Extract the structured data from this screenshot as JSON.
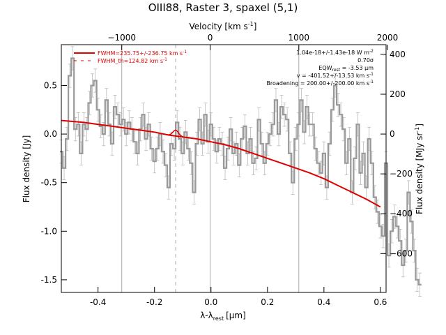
{
  "chart_data": {
    "type": "line",
    "title": "OIII88, Raster 3, spaxel (5,1)",
    "xlabel_bottom": "λ-λ",
    "xlabel_bottom_sub": "rest",
    "xlabel_bottom_unit": "[μm]",
    "xlabel_top": "Velocity [km s",
    "xlabel_top_sup": "-1",
    "xlabel_top_end": "]",
    "ylabel_left": "Flux density [Jy]",
    "ylabel_right": "Flux density [MJy sr",
    "ylabel_right_sup": "-1",
    "ylabel_right_end": "]",
    "xlim": [
      -0.53,
      0.62
    ],
    "ylim_left": [
      -1.63,
      0.92
    ],
    "top_axis_ticks": [
      {
        "value": -1000,
        "label": "−1000",
        "x_um": -0.316
      },
      {
        "value": 0,
        "label": "0",
        "x_um": -0.003
      },
      {
        "value": 1000,
        "label": "1000",
        "x_um": 0.311
      },
      {
        "value": 2000,
        "label": "2000",
        "x_um": 0.625
      }
    ],
    "left_ticks": [
      {
        "value": 0.5,
        "label": "0.5"
      },
      {
        "value": 0.0,
        "label": "0.0"
      },
      {
        "value": -0.5,
        "label": "-0.5"
      },
      {
        "value": -1.0,
        "label": "-1.0"
      },
      {
        "value": -1.5,
        "label": "-1.5"
      }
    ],
    "bottom_ticks": [
      {
        "value": -0.4,
        "label": "-0.4"
      },
      {
        "value": -0.2,
        "label": "-0.2"
      },
      {
        "value": 0.0,
        "label": "0.0"
      },
      {
        "value": 0.2,
        "label": "0.2"
      },
      {
        "value": 0.4,
        "label": "0.4"
      },
      {
        "value": 0.6,
        "label": "0.6"
      }
    ],
    "right_ticks": [
      {
        "value": 400,
        "label": "400",
        "y_jy": 0.82
      },
      {
        "value": 200,
        "label": "200",
        "y_jy": 0.41
      },
      {
        "value": 0,
        "label": "0",
        "y_jy": 0.0
      },
      {
        "value": -200,
        "label": "−200",
        "y_jy": -0.41
      },
      {
        "value": -400,
        "label": "−400",
        "y_jy": -0.82
      },
      {
        "value": -600,
        "label": "−600",
        "y_jy": -1.23
      }
    ],
    "vertical_lines": [
      -0.316,
      -0.003,
      0.311
    ],
    "dashed_line": -0.125,
    "legend": [
      {
        "label": "FWHM=235.75+/-236.75 km s",
        "sup": "-1",
        "style": "solid"
      },
      {
        "label": "FWHM_th=124.82 km s",
        "sup": "-1",
        "style": "dashed"
      }
    ],
    "annotations": [
      {
        "text": "1.04e-18+/-1.43e-18 W m",
        "sup": "-2"
      },
      {
        "text": "0.70σ",
        "sup": ""
      },
      {
        "text": "EQW",
        "sub": "rest",
        "after": " = -3.53 μm"
      },
      {
        "text": "v = -401.52+/-13.53 km s",
        "sup": "-1"
      },
      {
        "text": "Broadening = 200.00+/-200.00 km s",
        "sup": "-1"
      }
    ],
    "spectrum": {
      "name": "data",
      "x0": -0.53,
      "dx": 0.01,
      "y": [
        -0.18,
        -0.35,
        -0.05,
        0.6,
        0.78,
        0.05,
        0.1,
        -0.2,
        0.1,
        0.05,
        0.32,
        0.5,
        0.55,
        0.25,
        0.08,
        0.0,
        0.35,
        0.1,
        -0.1,
        0.28,
        0.2,
        0.1,
        0.15,
        0.0,
        0.12,
        0.05,
        -0.08,
        -0.2,
        0.05,
        0.2,
        -0.05,
        0.1,
        -0.15,
        -0.28,
        -0.15,
        0.0,
        -0.18,
        -0.32,
        -0.55,
        -0.1,
        -0.15,
        0.12,
        -0.05,
        -0.2,
        0.02,
        -0.15,
        -0.3,
        -0.6,
        -0.1,
        0.15,
        -0.1,
        0.2,
        -0.08,
        0.1,
        -0.05,
        -0.18,
        -0.05,
        -0.1,
        -0.35,
        -0.15,
        0.05,
        -0.2,
        -0.1,
        -0.32,
        -0.05,
        0.08,
        -0.2,
        -0.05,
        -0.3,
        -0.25,
        0.15,
        -0.1,
        -0.3,
        -0.1,
        0.0,
        0.1,
        0.35,
        0.0,
        0.28,
        0.2,
        0.15,
        -0.2,
        -0.5,
        -0.05,
        0.1,
        0.35,
        0.02,
        0.28,
        0.1,
        0.1,
        -0.15,
        -0.3,
        -0.4,
        -0.2,
        -0.55,
        -0.1,
        0.25,
        0.5,
        0.3,
        0.2,
        0.05,
        -0.3,
        -0.05,
        -0.6,
        -0.25,
        0.1,
        -0.4,
        -0.2,
        -0.55,
        -0.05,
        -0.3,
        -0.65,
        -0.8,
        -0.95,
        -1.05,
        -0.3,
        -1.25,
        -1.0,
        -0.85,
        -0.95,
        -1.1,
        -1.35,
        -1.2,
        -0.6,
        -0.9,
        -1.2,
        -1.5,
        -1.55
      ],
      "err": 0.12,
      "color": "#999999"
    },
    "fit": {
      "name": "fit",
      "color": "#e00000",
      "x": [
        -0.53,
        -0.45,
        -0.4,
        -0.35,
        -0.3,
        -0.25,
        -0.2,
        -0.15,
        -0.1,
        -0.05,
        0.0,
        0.05,
        0.1,
        0.15,
        0.2,
        0.25,
        0.3,
        0.35,
        0.4,
        0.45,
        0.5,
        0.55,
        0.6
      ],
      "y": [
        0.14,
        0.12,
        0.1,
        0.08,
        0.06,
        0.04,
        0.02,
        -0.01,
        -0.03,
        -0.05,
        -0.08,
        -0.11,
        -0.15,
        -0.2,
        -0.25,
        -0.3,
        -0.35,
        -0.4,
        -0.46,
        -0.53,
        -0.6,
        -0.67,
        -0.75
      ]
    },
    "line_profile": {
      "center": -0.125,
      "amplitude": 0.06,
      "sigma": 0.01
    },
    "grid": false,
    "legend_position": "top-left"
  }
}
